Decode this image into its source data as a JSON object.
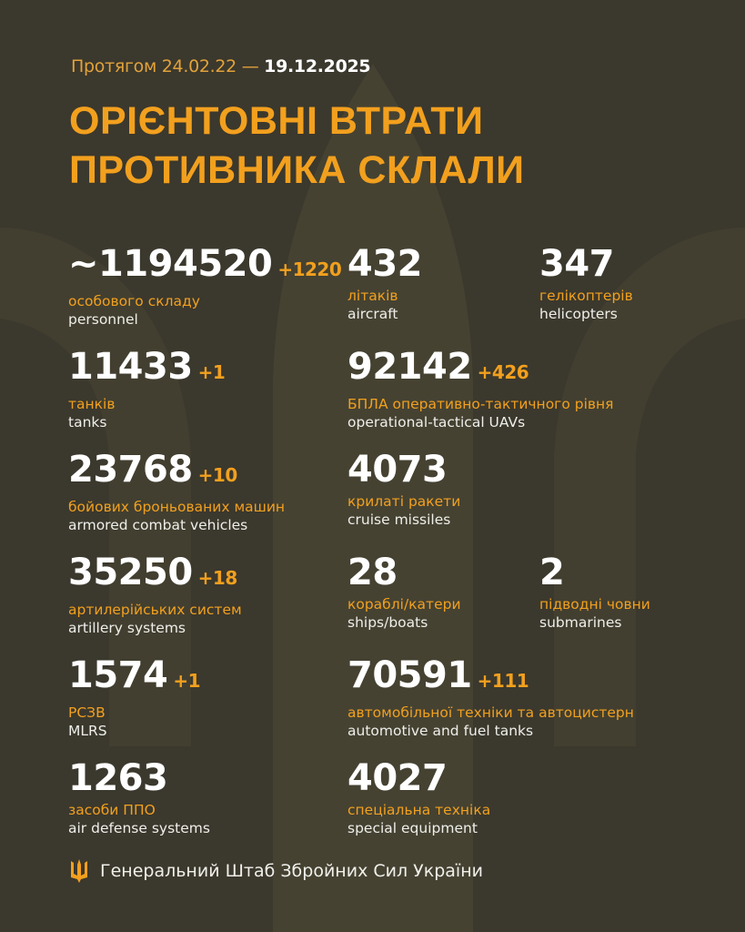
{
  "header": {
    "period_prefix": "Протягом 24.02.22 —",
    "period_end": "19.12.2025",
    "title_line1": "ОРІЄНТОВНІ ВТРАТИ",
    "title_line2": "ПРОТИВНИКА СКЛАЛИ"
  },
  "stats": [
    {
      "value": "~1194520",
      "delta": "+1220",
      "ua": "особового складу",
      "en": "personnel"
    },
    {
      "value": "432",
      "delta": "",
      "ua": "літаків",
      "en": "aircraft"
    },
    {
      "value": "347",
      "delta": "",
      "ua": "гелікоптерів",
      "en": "helicopters"
    },
    {
      "value": "11433",
      "delta": "+1",
      "ua": "танків",
      "en": "tanks"
    },
    {
      "value": "92142",
      "delta": "+426",
      "ua": "БПЛА оперативно-тактичного рівня",
      "en": "operational-tactical UAVs"
    },
    {
      "value": "23768",
      "delta": "+10",
      "ua": "бойових броньованих машин",
      "en": "armored combat vehicles"
    },
    {
      "value": "4073",
      "delta": "",
      "ua": "крилаті ракети",
      "en": "cruise missiles"
    },
    {
      "value": "35250",
      "delta": "+18",
      "ua": "артилерійських систем",
      "en": "artillery systems"
    },
    {
      "value": "28",
      "delta": "",
      "ua": "кораблі/катери",
      "en": "ships/boats"
    },
    {
      "value": "2",
      "delta": "",
      "ua": "підводні човни",
      "en": "submarines"
    },
    {
      "value": "1574",
      "delta": "+1",
      "ua": "РСЗВ",
      "en": "MLRS"
    },
    {
      "value": "70591",
      "delta": "+111",
      "ua": "автомобільної техніки та автоцистерн",
      "en": "automotive and fuel tanks"
    },
    {
      "value": "1263",
      "delta": "",
      "ua": "засоби ППО",
      "en": "air defense systems"
    },
    {
      "value": "4027",
      "delta": "",
      "ua": "спеціальна техніка",
      "en": "special equipment"
    }
  ],
  "footer": {
    "org": "Генеральний Штаб Збройних Сил України",
    "icon": "trident-icon"
  },
  "colors": {
    "background": "#3b382d",
    "accent": "#f2a01e",
    "text": "#ffffff"
  }
}
